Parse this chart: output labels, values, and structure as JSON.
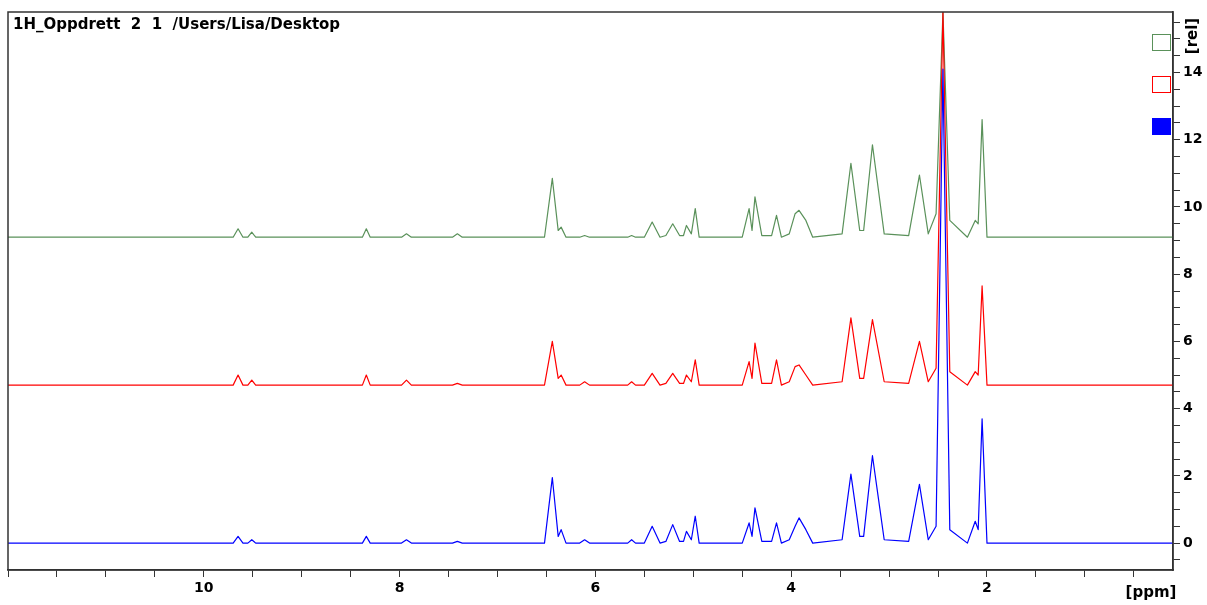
{
  "chart_data": {
    "type": "line",
    "title": "1H_Oppdrett  2  1  /Users/Lisa/Desktop",
    "xlabel": "[ppm]",
    "ylabel": "[rel]",
    "x": [
      12,
      9.7,
      9.65,
      9.6,
      9.55,
      9.51,
      9.47,
      8.38,
      8.34,
      8.3,
      7.98,
      7.93,
      7.88,
      7.46,
      7.41,
      7.36,
      6.52,
      6.44,
      6.38,
      6.35,
      6.3,
      6.16,
      6.11,
      6.06,
      5.67,
      5.63,
      5.59,
      5.5,
      5.42,
      5.34,
      5.28,
      5.21,
      5.14,
      5.1,
      5.07,
      5.02,
      4.98,
      4.94,
      4.5,
      4.43,
      4.4,
      4.37,
      4.3,
      4.2,
      4.15,
      4.1,
      4.02,
      3.96,
      3.92,
      3.85,
      3.78,
      3.48,
      3.39,
      3.3,
      3.26,
      3.17,
      3.05,
      2.8,
      2.69,
      2.6,
      2.52,
      2.45,
      2.38,
      2.2,
      2.12,
      2.09,
      2.05,
      2.0,
      1.8,
      0.1
    ],
    "series": [
      {
        "color": "#5a915a",
        "values": [
          9.1,
          9.1,
          9.35,
          9.1,
          9.1,
          9.25,
          9.1,
          9.1,
          9.35,
          9.1,
          9.1,
          9.2,
          9.1,
          9.1,
          9.2,
          9.1,
          9.1,
          10.85,
          9.3,
          9.4,
          9.1,
          9.1,
          9.15,
          9.1,
          9.1,
          9.15,
          9.1,
          9.1,
          9.55,
          9.1,
          9.15,
          9.5,
          9.15,
          9.15,
          9.45,
          9.2,
          9.95,
          9.1,
          9.1,
          9.95,
          9.3,
          10.3,
          9.15,
          9.15,
          9.75,
          9.1,
          9.2,
          9.8,
          9.9,
          9.6,
          9.1,
          9.2,
          11.3,
          9.3,
          9.3,
          11.85,
          9.2,
          9.15,
          10.95,
          9.2,
          9.8,
          15.8,
          9.6,
          9.1,
          9.6,
          9.5,
          12.6,
          9.1,
          9.1,
          9.1
        ]
      },
      {
        "color": "#ff0000",
        "values": [
          4.7,
          4.7,
          5.0,
          4.7,
          4.7,
          4.85,
          4.7,
          4.7,
          5.0,
          4.7,
          4.7,
          4.85,
          4.7,
          4.7,
          4.75,
          4.7,
          4.7,
          6.0,
          4.9,
          5.0,
          4.7,
          4.7,
          4.8,
          4.7,
          4.7,
          4.8,
          4.7,
          4.7,
          5.05,
          4.7,
          4.75,
          5.05,
          4.75,
          4.75,
          5.0,
          4.8,
          5.45,
          4.7,
          4.7,
          5.4,
          4.9,
          5.95,
          4.75,
          4.75,
          5.45,
          4.7,
          4.8,
          5.25,
          5.3,
          5.0,
          4.7,
          4.8,
          6.7,
          4.9,
          4.9,
          6.65,
          4.8,
          4.75,
          6.0,
          4.8,
          5.2,
          15.8,
          5.1,
          4.7,
          5.1,
          5.0,
          7.65,
          4.7,
          4.7,
          4.7
        ]
      },
      {
        "color": "#0000ff",
        "values": [
          0,
          0,
          0.2,
          0,
          0,
          0.1,
          0,
          0,
          0.2,
          0,
          0,
          0.1,
          0,
          0,
          0.05,
          0,
          0,
          1.95,
          0.2,
          0.4,
          0,
          0,
          0.1,
          0,
          0,
          0.1,
          0,
          0,
          0.5,
          0,
          0.05,
          0.55,
          0.05,
          0.05,
          0.35,
          0.1,
          0.8,
          0,
          0,
          0.6,
          0.2,
          1.05,
          0.05,
          0.05,
          0.6,
          0,
          0.1,
          0.5,
          0.75,
          0.4,
          0,
          0.1,
          2.05,
          0.2,
          0.2,
          2.6,
          0.1,
          0.05,
          1.75,
          0.1,
          0.5,
          14.1,
          0.4,
          0,
          0.65,
          0.4,
          3.7,
          0,
          0,
          0
        ]
      }
    ],
    "xlim": [
      12,
      0.1
    ],
    "xticks": [
      {
        "value": 12,
        "label": null
      },
      {
        "value": 11.5,
        "label": null
      },
      {
        "value": 11,
        "label": null
      },
      {
        "value": 10.5,
        "label": null
      },
      10,
      {
        "value": 9.5,
        "label": null
      },
      {
        "value": 9,
        "label": null
      },
      {
        "value": 8.5,
        "label": null
      },
      8,
      {
        "value": 7.5,
        "label": null
      },
      {
        "value": 7,
        "label": null
      },
      {
        "value": 6.5,
        "label": null
      },
      6,
      {
        "value": 5.5,
        "label": null
      },
      {
        "value": 5,
        "label": null
      },
      {
        "value": 4.5,
        "label": null
      },
      4,
      {
        "value": 3.5,
        "label": null
      },
      {
        "value": 3,
        "label": null
      },
      {
        "value": 2.5,
        "label": null
      },
      2,
      {
        "value": 1.5,
        "label": null
      },
      {
        "value": 1,
        "label": null
      },
      {
        "value": 0.5,
        "label": null
      }
    ],
    "ylim": [
      -0.8,
      15.8
    ],
    "yticks": [
      {
        "value": -0.5,
        "label": null
      },
      0,
      {
        "value": 0.5,
        "label": null
      },
      {
        "value": 1,
        "label": null
      },
      {
        "value": 1.5,
        "label": null
      },
      2,
      {
        "value": 2.5,
        "label": null
      },
      {
        "value": 3,
        "label": null
      },
      {
        "value": 3.5,
        "label": null
      },
      4,
      {
        "value": 4.5,
        "label": null
      },
      {
        "value": 5,
        "label": null
      },
      {
        "value": 5.5,
        "label": null
      },
      6,
      {
        "value": 6.5,
        "label": null
      },
      {
        "value": 7,
        "label": null
      },
      {
        "value": 7.5,
        "label": null
      },
      8,
      {
        "value": 8.5,
        "label": null
      },
      {
        "value": 9,
        "label": null
      },
      {
        "value": 9.5,
        "label": null
      },
      10,
      {
        "value": 10.5,
        "label": null
      },
      {
        "value": 11,
        "label": null
      },
      {
        "value": 11.5,
        "label": null
      },
      12,
      {
        "value": 12.5,
        "label": null
      },
      {
        "value": 13,
        "label": null
      },
      {
        "value": 13.5,
        "label": null
      },
      14,
      {
        "value": 14.5,
        "label": null
      },
      {
        "value": 15,
        "label": null
      },
      {
        "value": 15.5,
        "label": null
      }
    ],
    "grid": false,
    "marker": "none",
    "line_style": "solid"
  }
}
